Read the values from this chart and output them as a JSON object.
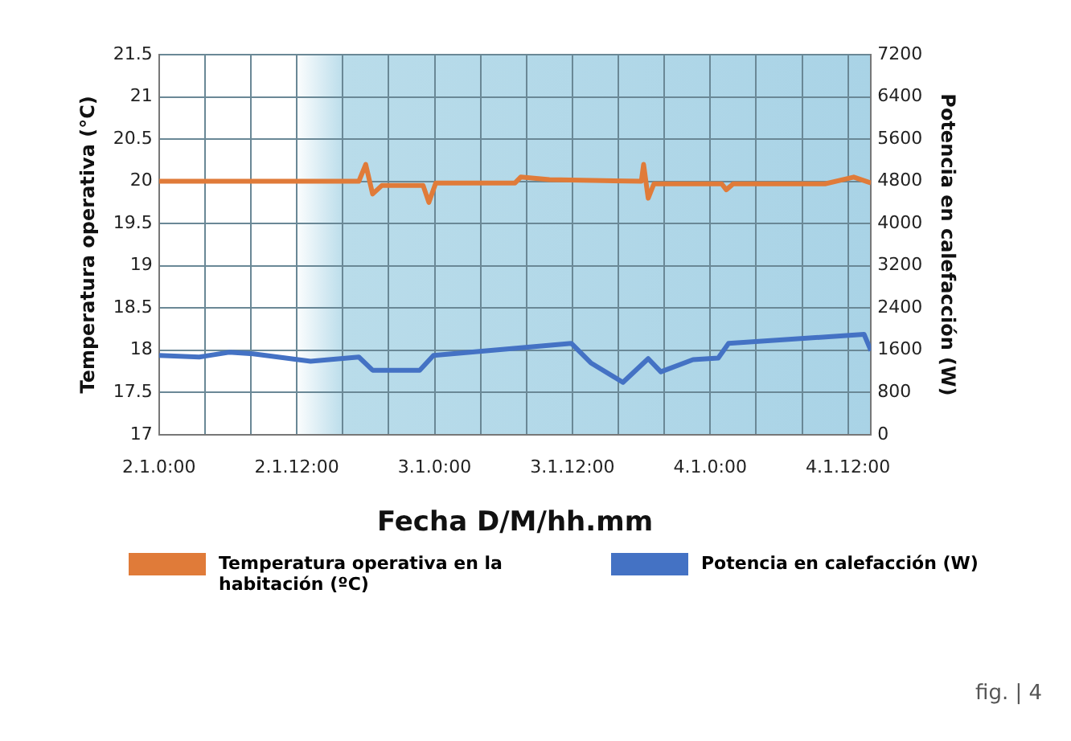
{
  "chart_data": {
    "type": "line",
    "xlabel": "Fecha D/M/hh.mm",
    "ylabel": "Temperatura operativa (°C)",
    "y2label": "Potencia en calefacción (W)",
    "xlim": [
      "--01-02T00:00",
      "--01-04T14:00"
    ],
    "xticks": [
      {
        "value": "--01-02T00:00",
        "label": "2.1.0:00"
      },
      {
        "value": "--01-02T04:00",
        "label": null
      },
      {
        "value": "--01-02T08:00",
        "label": null
      },
      {
        "value": "--01-02T12:00",
        "label": "2.1.12:00"
      },
      {
        "value": "--01-02T16:00",
        "label": null
      },
      {
        "value": "--01-02T20:00",
        "label": null
      },
      {
        "value": "--01-03T00:00",
        "label": "3.1.0:00"
      },
      {
        "value": "--01-03T04:00",
        "label": null
      },
      {
        "value": "--01-03T08:00",
        "label": null
      },
      {
        "value": "--01-03T12:00",
        "label": "3.1.12:00"
      },
      {
        "value": "--01-03T16:00",
        "label": null
      },
      {
        "value": "--01-03T20:00",
        "label": null
      },
      {
        "value": "--01-04T00:00",
        "label": "4.1.0:00"
      },
      {
        "value": "--01-04T04:00",
        "label": null
      },
      {
        "value": "--01-04T08:00",
        "label": null
      },
      {
        "value": "--01-04T12:00",
        "label": "4.1.12:00"
      }
    ],
    "ylim": [
      17,
      21.5
    ],
    "yticks": [
      17,
      17.5,
      18,
      18.5,
      19,
      19.5,
      20,
      20.5,
      21,
      21.5
    ],
    "y2lim": [
      0,
      7200
    ],
    "y2ticks": [
      0,
      800,
      1600,
      2400,
      3200,
      4000,
      4800,
      5600,
      6400,
      7200
    ],
    "grid": true,
    "legend": "bottom",
    "marker": "none",
    "line_style": "solid",
    "series": [
      {
        "name": "Temperatura operativa en la habitación (ºC)",
        "color": "#e07b39",
        "x": [
          "--01-02T00:00",
          "--01-02T17:24",
          "--01-02T18:00",
          "--01-02T18:36",
          "--01-02T19:24",
          "--01-02T23:00",
          "--01-02T23:30",
          "--01-03T00:06",
          "--01-03T07:00",
          "--01-03T07:30",
          "--01-03T10:00",
          "--01-03T18:00",
          "--01-03T18:12",
          "--01-03T18:36",
          "--01-03T19:06",
          "--01-04T01:00",
          "--01-04T01:24",
          "--01-04T02:00",
          "--01-04T10:00",
          "--01-04T12:30",
          "--01-04T14:00"
        ],
        "values": [
          20,
          20,
          20.2,
          19.85,
          19.95,
          19.95,
          19.75,
          19.98,
          19.98,
          20.05,
          20.02,
          20,
          20.2,
          19.8,
          19.97,
          19.97,
          19.9,
          19.97,
          19.97,
          20.05,
          19.98
        ]
      },
      {
        "name": "Potencia en calefacción (W)",
        "color": "#4472c4",
        "axis": "y2",
        "x": [
          "--01-02T00:00",
          "--01-02T03:30",
          "--01-02T06:06",
          "--01-02T08:12",
          "--01-02T13:12",
          "--01-02T17:24",
          "--01-02T18:36",
          "--01-02T22:42",
          "--01-02T23:54",
          "--01-03T11:54",
          "--01-03T13:36",
          "--01-03T16:24",
          "--01-03T18:36",
          "--01-03T19:42",
          "--01-03T22:30",
          "--01-04T00:42",
          "--01-04T01:36",
          "--01-04T13:24",
          "--01-04T14:00"
        ],
        "values": [
          1500,
          1470,
          1560,
          1530,
          1390,
          1470,
          1220,
          1220,
          1500,
          1730,
          1360,
          990,
          1440,
          1190,
          1420,
          1450,
          1730,
          1900,
          1590
        ]
      }
    ],
    "annotations": [
      "fig. | 4"
    ]
  }
}
